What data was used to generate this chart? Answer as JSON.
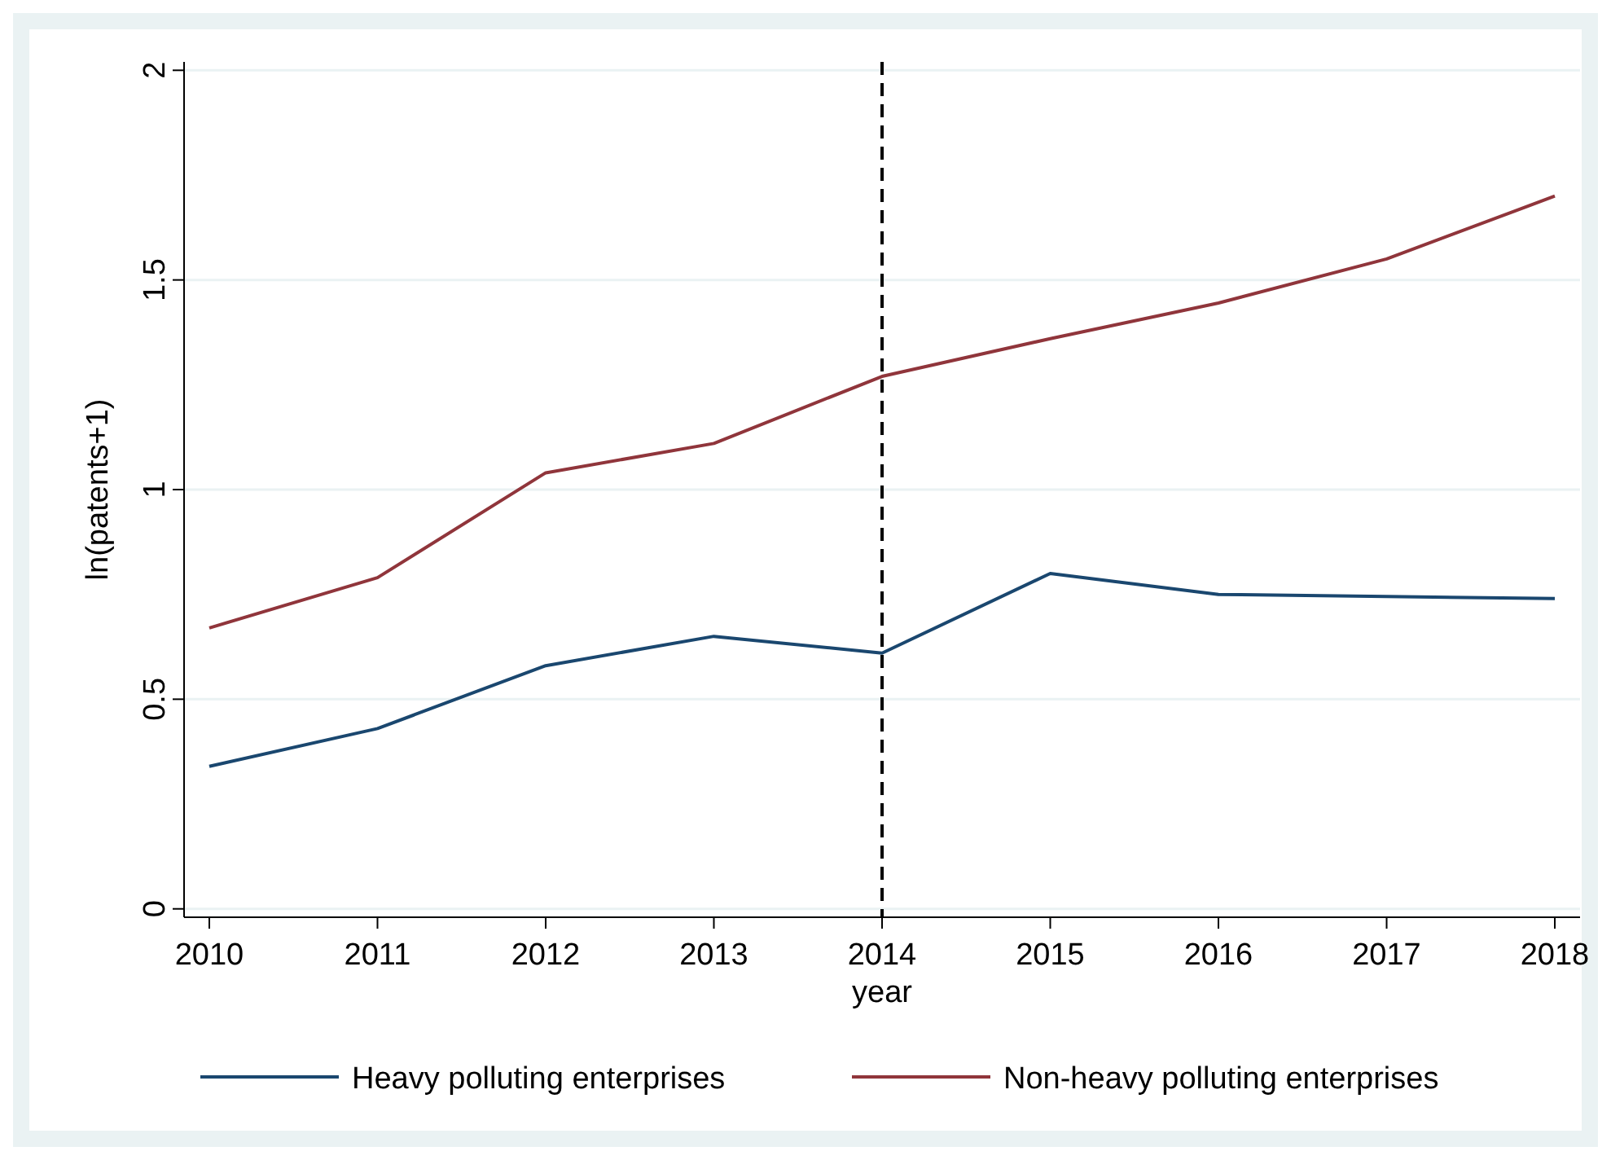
{
  "chart_data": {
    "type": "line",
    "xlabel": "year",
    "ylabel": "ln(patents+1)",
    "x": [
      2010,
      2011,
      2012,
      2013,
      2014,
      2015,
      2016,
      2017,
      2018
    ],
    "xlim": [
      2009.85,
      2018.15
    ],
    "xticks": [
      2010,
      2011,
      2012,
      2013,
      2014,
      2015,
      2016,
      2017,
      2018
    ],
    "ylim": [
      -0.02,
      2.02
    ],
    "yticks": [
      0,
      0.5,
      1,
      1.5,
      2
    ],
    "grid": "y",
    "legend": "bottom",
    "series": [
      {
        "name": "Heavy polluting enterprises",
        "color": "#1a476f",
        "values": [
          0.34,
          0.43,
          0.58,
          0.65,
          0.61,
          0.8,
          0.75,
          0.745,
          0.74
        ]
      },
      {
        "name": "Non-heavy polluting enterprises",
        "color": "#90353b",
        "values": [
          0.67,
          0.79,
          1.04,
          1.11,
          1.27,
          1.36,
          1.445,
          1.55,
          1.7
        ]
      }
    ],
    "ref_lines": [
      {
        "axis": "x",
        "value": 2014,
        "color": "#000000",
        "line_style": "dashed"
      }
    ]
  }
}
